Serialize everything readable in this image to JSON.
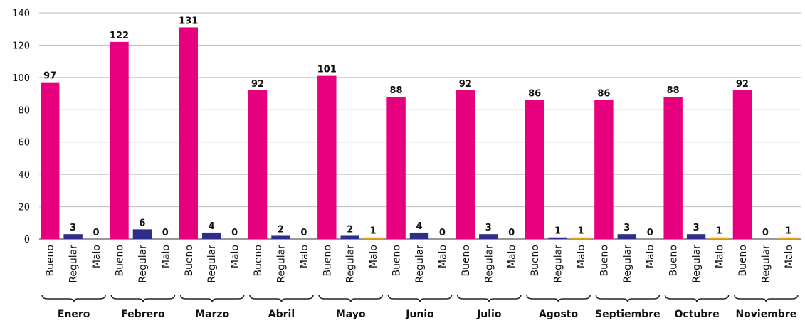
{
  "chart_data": {
    "type": "bar",
    "categories": [
      "Enero",
      "Febrero",
      "Marzo",
      "Abril",
      "Mayo",
      "Junio",
      "Julio",
      "Agosto",
      "Septiembre",
      "Octubre",
      "Noviembre"
    ],
    "series": [
      {
        "name": "Bueno",
        "color": "#e6007e",
        "values": [
          97,
          122,
          131,
          92,
          101,
          88,
          92,
          86,
          86,
          88,
          92
        ]
      },
      {
        "name": "Regular",
        "color": "#2e2e8a",
        "values": [
          3,
          6,
          4,
          2,
          2,
          4,
          3,
          1,
          3,
          3,
          0
        ]
      },
      {
        "name": "Malo",
        "color": "#e8a317",
        "values": [
          0,
          0,
          0,
          0,
          1,
          0,
          0,
          1,
          0,
          1,
          1
        ]
      }
    ],
    "ylim": [
      0,
      140
    ],
    "yticks": [
      0,
      20,
      40,
      60,
      80,
      100,
      120,
      140
    ],
    "grid": true
  }
}
